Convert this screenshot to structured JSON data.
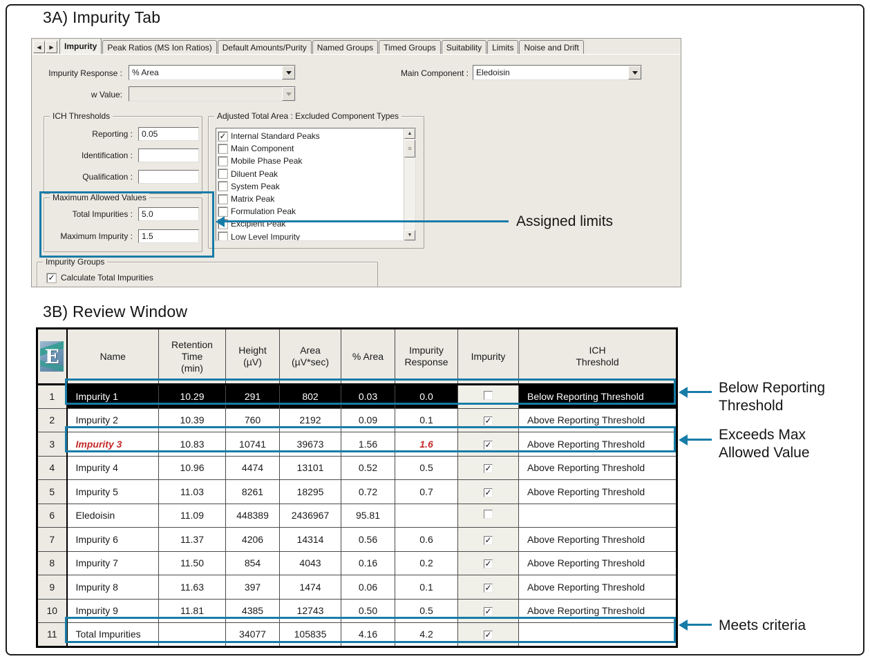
{
  "colors": {
    "highlight_blue": "#177CA8",
    "alert_red": "#C42A2A",
    "selected_row_bg": "#000000"
  },
  "section_a": {
    "title": "3A) Impurity Tab"
  },
  "section_b": {
    "title": "3B) Review Window"
  },
  "impurity_tab": {
    "tabs": [
      {
        "label": "Impurity",
        "active": true
      },
      {
        "label": "Peak Ratios (MS Ion Ratios)",
        "active": false
      },
      {
        "label": "Default Amounts/Purity",
        "active": false
      },
      {
        "label": "Named Groups",
        "active": false
      },
      {
        "label": "Timed Groups",
        "active": false
      },
      {
        "label": "Suitability",
        "active": false
      },
      {
        "label": "Limits",
        "active": false
      },
      {
        "label": "Noise and Drift",
        "active": false
      }
    ],
    "fields": {
      "impurity_response_label": "Impurity Response :",
      "impurity_response_value": "% Area",
      "w_value_label": "w Value:",
      "w_value_value": "",
      "main_component_label": "Main Component :",
      "main_component_value": "Eledoisin"
    },
    "ich_thresholds": {
      "title": "ICH Thresholds",
      "reporting_label": "Reporting :",
      "reporting_value": "0.05",
      "identification_label": "Identification :",
      "identification_value": "",
      "qualification_label": "Qualification :",
      "qualification_value": ""
    },
    "max_allowed": {
      "title": "Maximum Allowed Values",
      "total_impurities_label": "Total Impurities :",
      "total_impurities_value": "5.0",
      "maximum_impurity_label": "Maximum Impurity :",
      "maximum_impurity_value": "1.5"
    },
    "excluded_types": {
      "title": "Adjusted Total Area : Excluded Component Types",
      "items": [
        {
          "label": "Internal Standard Peaks",
          "checked": true
        },
        {
          "label": "Main Component",
          "checked": false
        },
        {
          "label": "Mobile Phase Peak",
          "checked": false
        },
        {
          "label": "Diluent Peak",
          "checked": false
        },
        {
          "label": "System Peak",
          "checked": false
        },
        {
          "label": "Matrix Peak",
          "checked": false
        },
        {
          "label": "Formulation Peak",
          "checked": false
        },
        {
          "label": "Excipient Peak",
          "checked": false
        },
        {
          "label": "Low Level Impurity",
          "checked": false
        }
      ]
    },
    "impurity_groups": {
      "title": "Impurity Groups",
      "calc_total_label": "Calculate Total Impurities",
      "checked": true
    }
  },
  "annotations": {
    "assigned_limits": "Assigned limits",
    "below_reporting": "Below Reporting\nThreshold",
    "exceeds_max": "Exceeds Max\nAllowed Value",
    "meets_criteria": "Meets criteria"
  },
  "review_table": {
    "columns": [
      "Name",
      "Retention\nTime\n(min)",
      "Height\n(µV)",
      "Area\n(µV*sec)",
      "% Area",
      "Impurity\nResponse",
      "Impurity",
      "ICH\nThreshold"
    ],
    "rows": [
      {
        "num": "1",
        "name": "Impurity 1",
        "rt": "10.29",
        "height": "291",
        "area": "802",
        "pct_area": "0.03",
        "impurity_response": "0.0",
        "impurity_checked": false,
        "ich": "Below Reporting Threshold",
        "black": true,
        "red": false
      },
      {
        "num": "2",
        "name": "Impurity 2",
        "rt": "10.39",
        "height": "760",
        "area": "2192",
        "pct_area": "0.09",
        "impurity_response": "0.1",
        "impurity_checked": true,
        "ich": "Above Reporting Threshold",
        "black": false,
        "red": false
      },
      {
        "num": "3",
        "name": "Impurity 3",
        "rt": "10.83",
        "height": "10741",
        "area": "39673",
        "pct_area": "1.56",
        "impurity_response": "1.6",
        "impurity_checked": true,
        "ich": "Above Reporting Threshold",
        "black": false,
        "red": true
      },
      {
        "num": "4",
        "name": "Impurity 4",
        "rt": "10.96",
        "height": "4474",
        "area": "13101",
        "pct_area": "0.52",
        "impurity_response": "0.5",
        "impurity_checked": true,
        "ich": "Above Reporting Threshold",
        "black": false,
        "red": false
      },
      {
        "num": "5",
        "name": "Impurity 5",
        "rt": "11.03",
        "height": "8261",
        "area": "18295",
        "pct_area": "0.72",
        "impurity_response": "0.7",
        "impurity_checked": true,
        "ich": "Above Reporting Threshold",
        "black": false,
        "red": false
      },
      {
        "num": "6",
        "name": "Eledoisin",
        "rt": "11.09",
        "height": "448389",
        "area": "2436967",
        "pct_area": "95.81",
        "impurity_response": "",
        "impurity_checked": false,
        "ich": "",
        "black": false,
        "red": false
      },
      {
        "num": "7",
        "name": "Impurity 6",
        "rt": "11.37",
        "height": "4206",
        "area": "14314",
        "pct_area": "0.56",
        "impurity_response": "0.6",
        "impurity_checked": true,
        "ich": "Above Reporting Threshold",
        "black": false,
        "red": false
      },
      {
        "num": "8",
        "name": "Impurity 7",
        "rt": "11.50",
        "height": "854",
        "area": "4043",
        "pct_area": "0.16",
        "impurity_response": "0.2",
        "impurity_checked": true,
        "ich": "Above Reporting Threshold",
        "black": false,
        "red": false
      },
      {
        "num": "9",
        "name": "Impurity 8",
        "rt": "11.63",
        "height": "397",
        "area": "1474",
        "pct_area": "0.06",
        "impurity_response": "0.1",
        "impurity_checked": true,
        "ich": "Above Reporting Threshold",
        "black": false,
        "red": false
      },
      {
        "num": "10",
        "name": "Impurity 9",
        "rt": "11.81",
        "height": "4385",
        "area": "12743",
        "pct_area": "0.50",
        "impurity_response": "0.5",
        "impurity_checked": true,
        "ich": "Above Reporting Threshold",
        "black": false,
        "red": false
      },
      {
        "num": "11",
        "name": "Total Impurities",
        "rt": "",
        "height": "34077",
        "area": "105835",
        "pct_area": "4.16",
        "impurity_response": "4.2",
        "impurity_checked": true,
        "ich": "",
        "black": false,
        "red": false
      }
    ]
  }
}
